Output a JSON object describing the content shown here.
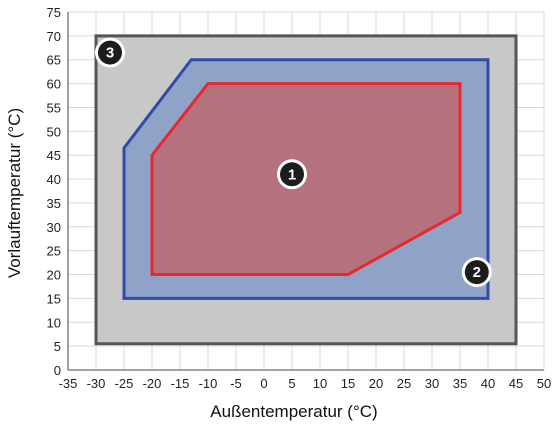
{
  "chart_data": {
    "type": "area",
    "xlabel": "Außentemperatur (°C)",
    "ylabel": "Vorlauftemperatur (°C)",
    "xlim": [
      -35,
      50
    ],
    "ylim": [
      0,
      75
    ],
    "xticks": [
      -35,
      -30,
      -25,
      -20,
      -15,
      -10,
      -5,
      0,
      5,
      10,
      15,
      20,
      25,
      30,
      35,
      40,
      45,
      50
    ],
    "yticks": [
      0,
      5,
      10,
      15,
      20,
      25,
      30,
      35,
      40,
      45,
      50,
      55,
      60,
      65,
      70,
      75
    ],
    "grid": true,
    "regions": [
      {
        "label": "3",
        "fill": "#c8c8c8",
        "stroke": "#555555",
        "points": [
          [
            -30,
            70
          ],
          [
            45,
            70
          ],
          [
            45,
            5.5
          ],
          [
            -30,
            5.5
          ]
        ]
      },
      {
        "label": "2",
        "fill": "#8fa3c9",
        "stroke": "#2f4cad",
        "points": [
          [
            -25,
            46.5
          ],
          [
            -13,
            65
          ],
          [
            40,
            65
          ],
          [
            40,
            15
          ],
          [
            -25,
            15
          ]
        ]
      },
      {
        "label": "1",
        "fill": "#b6717f",
        "stroke": "#e8282c",
        "points": [
          [
            -20,
            45
          ],
          [
            -10,
            60
          ],
          [
            35,
            60
          ],
          [
            35,
            33
          ],
          [
            15,
            20
          ],
          [
            -20,
            20
          ]
        ]
      }
    ],
    "badges": [
      {
        "label": "3",
        "x": -27.5,
        "y": 66.5
      },
      {
        "label": "1",
        "x": 5,
        "y": 41
      },
      {
        "label": "2",
        "x": 38,
        "y": 20.5
      }
    ]
  }
}
